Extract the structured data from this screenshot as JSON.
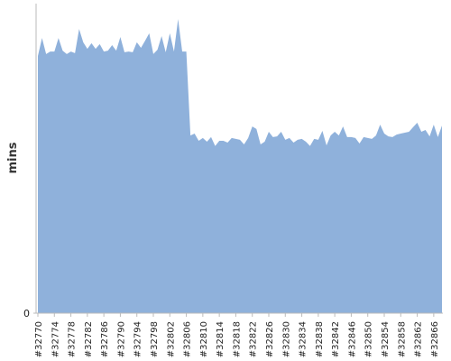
{
  "chart_data": {
    "type": "area",
    "y_label": "mins",
    "color": "#8fb1db",
    "categories": [
      "#32770",
      null,
      null,
      null,
      "#32774",
      null,
      null,
      null,
      "#32778",
      null,
      null,
      null,
      "#32782",
      null,
      null,
      null,
      "#32786",
      null,
      null,
      null,
      "#32790",
      null,
      null,
      null,
      "#32794",
      null,
      null,
      null,
      "#32798",
      null,
      null,
      null,
      "#32802",
      null,
      null,
      null,
      "#32806",
      null,
      null,
      null,
      "#32810",
      null,
      null,
      null,
      "#32814",
      null,
      null,
      null,
      "#32818",
      null,
      null,
      null,
      "#32822",
      null,
      null,
      null,
      "#32826",
      null,
      null,
      null,
      "#32830",
      null,
      null,
      null,
      "#32834",
      null,
      null,
      null,
      "#32838",
      null,
      null,
      null,
      "#32842",
      null,
      null,
      null,
      "#32846",
      null,
      null,
      null,
      "#32850",
      null,
      null,
      null,
      "#32854",
      null,
      null,
      null,
      "#32858",
      null,
      null,
      null,
      "#32862",
      null,
      null,
      null,
      "#32866",
      null,
      null
    ],
    "values": [
      83.1,
      88.9,
      83.7,
      84.5,
      84.5,
      88.9,
      84.8,
      83.7,
      84.5,
      84.0,
      91.8,
      87.5,
      85.4,
      87.2,
      85.4,
      86.9,
      84.5,
      84.8,
      86.6,
      84.8,
      89.2,
      84.3,
      84.5,
      84.3,
      87.5,
      85.7,
      88.0,
      90.4,
      83.7,
      85.1,
      89.5,
      84.3,
      90.4,
      84.5,
      95.0,
      84.5,
      84.5,
      57.4,
      58.0,
      55.7,
      56.6,
      55.4,
      56.9,
      54.0,
      55.7,
      55.7,
      55.1,
      56.6,
      56.3,
      56.0,
      54.5,
      56.6,
      60.3,
      59.5,
      54.5,
      55.4,
      58.6,
      56.9,
      57.1,
      58.6,
      56.0,
      56.6,
      55.1,
      56.0,
      56.3,
      55.4,
      54.0,
      56.3,
      56.0,
      58.9,
      54.2,
      57.4,
      58.6,
      57.4,
      60.3,
      56.9,
      56.9,
      56.6,
      54.8,
      56.9,
      56.6,
      56.3,
      57.4,
      60.9,
      58.0,
      57.1,
      56.9,
      57.7,
      58.0,
      58.3,
      58.6,
      60.1,
      61.5,
      58.6,
      59.2,
      57.1,
      60.9,
      56.9,
      60.6
    ],
    "ylim": [
      0,
      100
    ],
    "yticks": [
      0
    ]
  }
}
